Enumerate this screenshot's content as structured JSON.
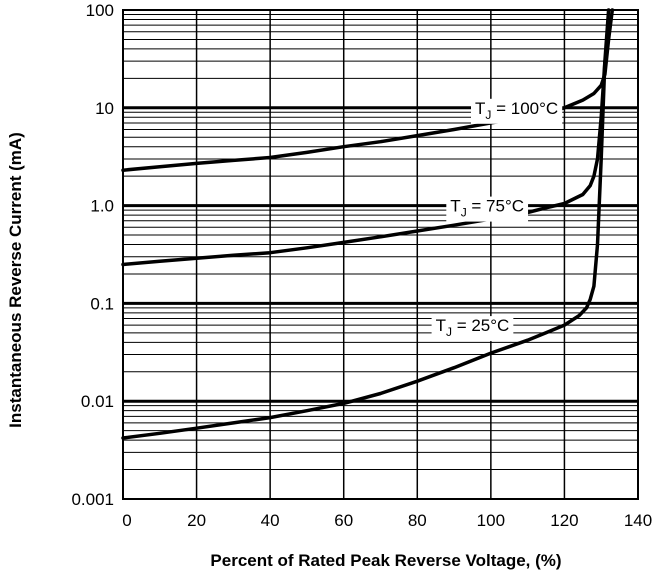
{
  "chart_data": {
    "type": "line",
    "title": "",
    "xlabel": "Percent of Rated Peak Reverse Voltage, (%)",
    "ylabel": "Instantaneous Reverse Current (mA)",
    "xlim": [
      0,
      140
    ],
    "ylim": [
      0.001,
      100
    ],
    "yscale": "log",
    "grid": true,
    "x_ticks": [
      "0",
      "20",
      "40",
      "60",
      "80",
      "100",
      "120",
      "140"
    ],
    "y_ticks": [
      "100",
      "10",
      "1.0",
      "0.1",
      "0.01",
      "0.001"
    ],
    "series": [
      {
        "name": "TJ = 100°C",
        "label_main": "T",
        "label_sub": "J",
        "label_rest": " = 100°C",
        "label_at": [
          107,
          10.0
        ],
        "x": [
          0,
          10,
          20,
          30,
          40,
          50,
          60,
          70,
          80,
          90,
          100,
          110,
          115,
          120,
          125,
          128,
          130,
          131,
          132,
          133
        ],
        "y": [
          2.3,
          2.5,
          2.7,
          2.9,
          3.1,
          3.5,
          4.0,
          4.5,
          5.2,
          6.0,
          7.0,
          8.0,
          8.8,
          10,
          12,
          14,
          17,
          22,
          50,
          100
        ]
      },
      {
        "name": "TJ = 75°C",
        "label_main": "T",
        "label_sub": "J",
        "label_rest": " = 75°C",
        "label_at": [
          99,
          1.0
        ],
        "x": [
          0,
          10,
          20,
          30,
          40,
          50,
          60,
          70,
          80,
          90,
          100,
          110,
          115,
          120,
          125,
          127,
          128,
          129,
          130,
          131,
          132
        ],
        "y": [
          0.25,
          0.27,
          0.29,
          0.31,
          0.33,
          0.37,
          0.42,
          0.48,
          0.55,
          0.63,
          0.73,
          0.85,
          0.95,
          1.05,
          1.3,
          1.6,
          2.0,
          3.0,
          8,
          30,
          100
        ]
      },
      {
        "name": "TJ = 25°C",
        "label_main": "T",
        "label_sub": "J",
        "label_rest": " = 25°C",
        "label_at": [
          95,
          0.06
        ],
        "x": [
          0,
          10,
          20,
          30,
          40,
          50,
          60,
          70,
          80,
          90,
          100,
          110,
          115,
          120,
          124,
          126,
          127,
          128,
          129,
          130,
          131
        ],
        "y": [
          0.0042,
          0.0047,
          0.0053,
          0.006,
          0.0068,
          0.008,
          0.0095,
          0.012,
          0.016,
          0.022,
          0.031,
          0.042,
          0.05,
          0.06,
          0.075,
          0.09,
          0.11,
          0.15,
          0.4,
          3,
          30
        ]
      }
    ]
  }
}
